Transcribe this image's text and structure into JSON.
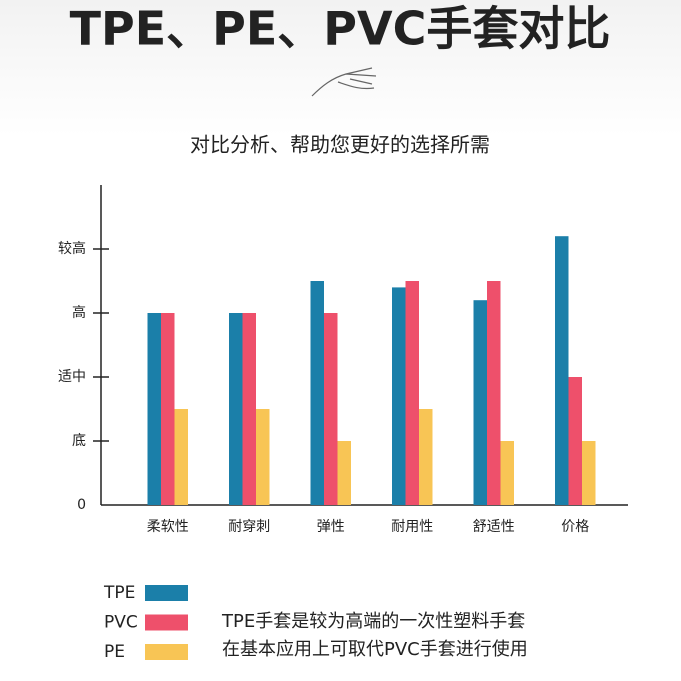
{
  "chart_data": {
    "type": "bar",
    "title": "TPE、PE、PVC手套对比",
    "subtitle": "对比分析、帮助您更好的选择所需",
    "categories": [
      "柔软性",
      "耐穿刺",
      "弹性",
      "耐用性",
      "舒适性",
      "价格"
    ],
    "series": [
      {
        "name": "TPE",
        "color": "#1b7fa9",
        "values": [
          3,
          3,
          3.5,
          3.4,
          3.2,
          4.2
        ]
      },
      {
        "name": "PVC",
        "color": "#ee506b",
        "values": [
          3,
          3,
          3,
          3.5,
          3.5,
          2
        ]
      },
      {
        "name": "PE",
        "color": "#f8c555",
        "values": [
          1.5,
          1.5,
          1,
          1.5,
          1,
          1
        ]
      }
    ],
    "ylim": [
      0,
      5
    ],
    "yticks": [
      0,
      {
        "value": 1,
        "label": "底"
      },
      {
        "value": 2,
        "label": "适中"
      },
      {
        "value": 3,
        "label": "高"
      },
      {
        "value": 4,
        "label": "较高"
      }
    ],
    "legend": "bottom-left",
    "note": [
      "TPE手套是较为高端的一次性塑料手套",
      "在基本应用上可取代PVC手套进行使用"
    ]
  }
}
